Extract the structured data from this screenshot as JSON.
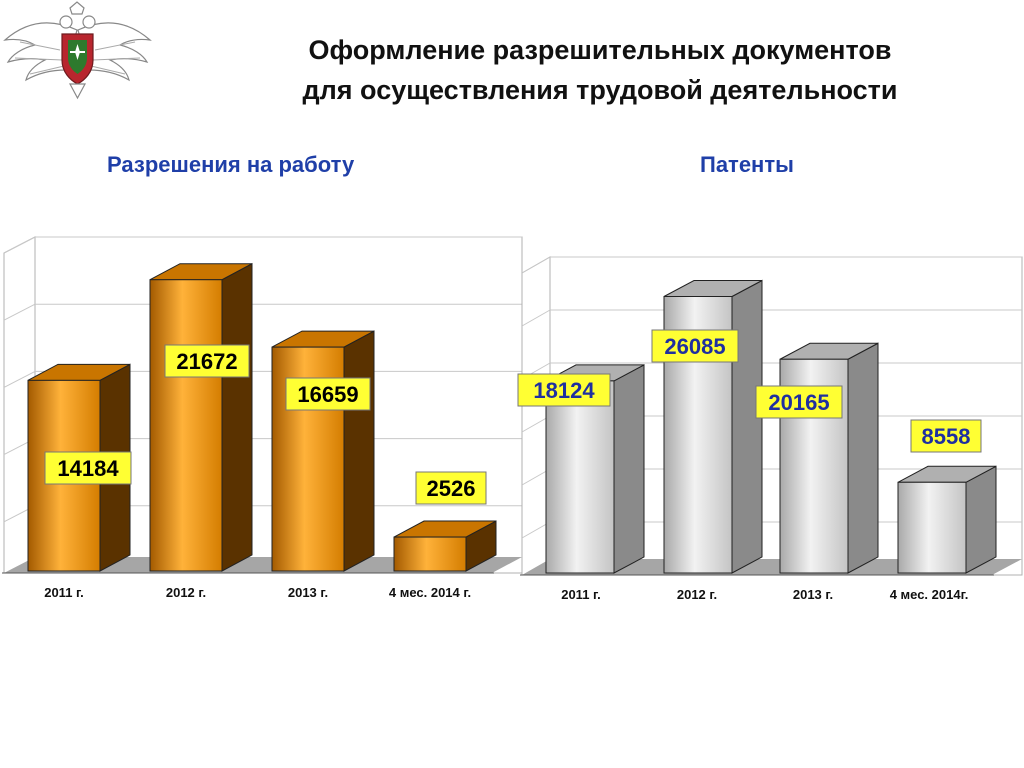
{
  "header": {
    "title_line1": "Оформление разрешительных документов",
    "title_line2": "для осуществления трудовой деятельности"
  },
  "colors": {
    "orange_front": "#f39200",
    "orange_side": "#5a3200",
    "orange_top": "#c97500",
    "grey_front": "#d6d6d6",
    "grey_side": "#8a8a8a",
    "grey_top": "#b0b0b0",
    "label_bg": "#ffff33",
    "label_text_left": "#000000",
    "label_text_right": "#1f2fa0",
    "subtitle": "#1f3fa8"
  },
  "chart_data": [
    {
      "type": "bar",
      "title": "Разрешения на работу",
      "categories": [
        "2011 г.",
        "2012 г.",
        "2013 г.",
        "4 мес. 2014 г."
      ],
      "values": [
        14184,
        21672,
        16659,
        2526
      ],
      "ylim": [
        0,
        25000
      ],
      "grid": true,
      "style": "3d-orange"
    },
    {
      "type": "bar",
      "title": "Патенты",
      "categories": [
        "2011 г.",
        "2012 г.",
        "2013 г.",
        "4 мес. 2014г."
      ],
      "values": [
        18124,
        26085,
        20165,
        8558
      ],
      "ylim": [
        0,
        30000
      ],
      "grid": true,
      "style": "3d-grey"
    }
  ]
}
